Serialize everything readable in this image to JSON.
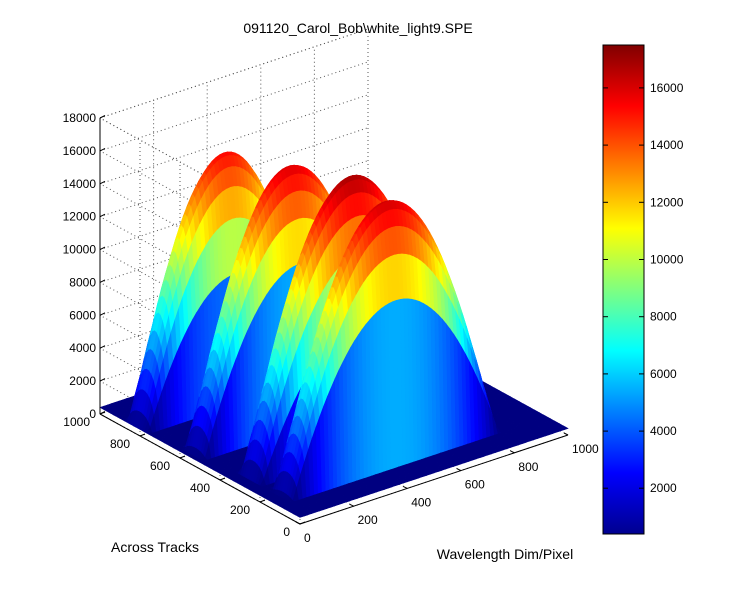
{
  "chart_data": {
    "type": "surface",
    "title": "091120_Carol_Bob\\white_light9.SPE",
    "xlabel": "Wavelength Dim/Pixel",
    "ylabel": "Across Tracks",
    "zlabel": "",
    "xlim": [
      0,
      1000
    ],
    "ylim": [
      0,
      1000
    ],
    "zlim": [
      0,
      18000
    ],
    "x_ticks": [
      0,
      200,
      400,
      600,
      800,
      1000
    ],
    "y_ticks": [
      0,
      200,
      400,
      600,
      800,
      1000
    ],
    "z_ticks": [
      0,
      2000,
      4000,
      6000,
      8000,
      10000,
      12000,
      14000,
      16000,
      18000
    ],
    "grid": true,
    "colormap": "jet",
    "colorbar": {
      "limits": [
        400,
        17500
      ],
      "ticks": [
        2000,
        4000,
        6000,
        8000,
        10000,
        12000,
        14000,
        16000
      ]
    },
    "series": [
      {
        "across_track": 820,
        "peak_wavelength": 330,
        "peak_value": 15300,
        "half_width": 330
      },
      {
        "across_track": 560,
        "peak_wavelength": 380,
        "peak_value": 16000,
        "half_width": 360
      },
      {
        "across_track": 310,
        "peak_wavelength": 420,
        "peak_value": 16800,
        "half_width": 380
      },
      {
        "across_track": 160,
        "peak_wavelength": 440,
        "peak_value": 16200,
        "half_width": 390
      }
    ]
  }
}
